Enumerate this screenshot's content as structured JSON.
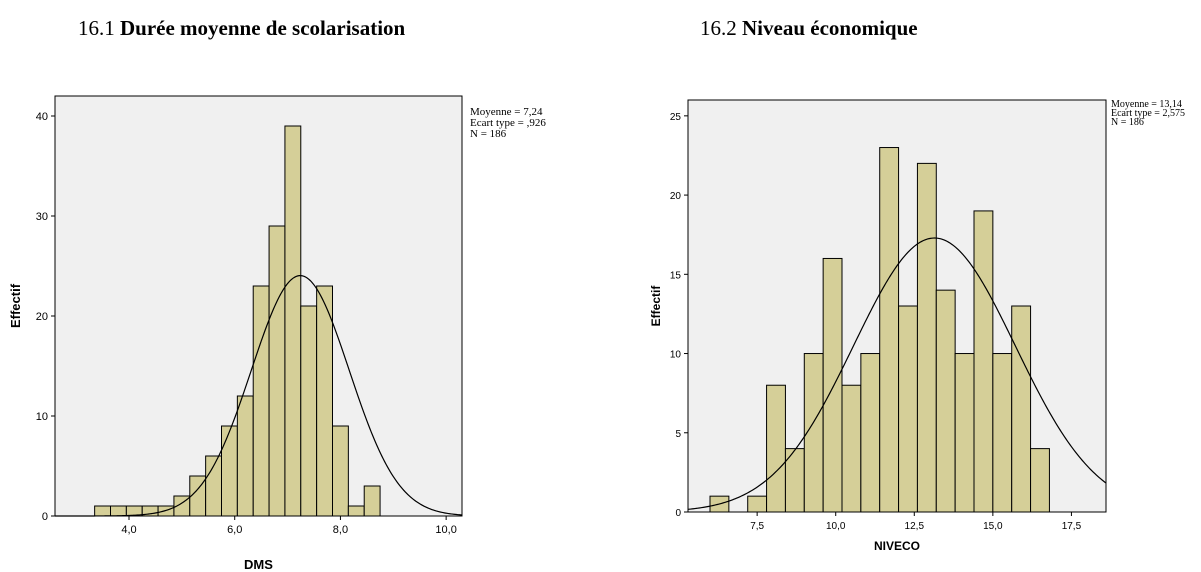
{
  "headings": [
    {
      "number": "16.1",
      "title": "Durée moyenne de scolarisation"
    },
    {
      "number": "16.2",
      "title": "Niveau économique"
    }
  ],
  "colors": {
    "bar_fill": "#d5cf98",
    "bar_stroke": "#000000",
    "plot_bg": "#f0f0f0",
    "curve": "#000000"
  },
  "chart_data": [
    {
      "type": "bar",
      "subtype": "histogram",
      "title": "",
      "xlabel": "DMS",
      "ylabel": "Effectif",
      "xlim": [
        2.6,
        10.3
      ],
      "ylim": [
        0,
        42
      ],
      "xticks": [
        4.0,
        6.0,
        8.0,
        10.0
      ],
      "xtick_labels": [
        "4,0",
        "6,0",
        "8,0",
        "10,0"
      ],
      "yticks": [
        0,
        10,
        20,
        30,
        40
      ],
      "ytick_labels": [
        "0",
        "10",
        "20",
        "30",
        "40"
      ],
      "bin_width": 0.3,
      "bins_start": [
        3.35,
        3.65,
        3.95,
        4.25,
        4.55,
        4.85,
        5.15,
        5.45,
        5.75,
        6.05,
        6.35,
        6.65,
        6.95,
        7.25,
        7.55,
        7.85,
        8.15,
        8.45,
        8.75,
        9.05
      ],
      "values": [
        1,
        1,
        1,
        1,
        1,
        2,
        4,
        6,
        9,
        12,
        23,
        29,
        39,
        21,
        23,
        9,
        1,
        3,
        0,
        0
      ],
      "normal_curve": {
        "mean": 7.24,
        "sd": 0.926,
        "n": 186
      },
      "stats_text": [
        "Moyenne = 7,24",
        "Ecart type = ,926",
        "N = 186"
      ],
      "grid": false
    },
    {
      "type": "bar",
      "subtype": "histogram",
      "title": "",
      "xlabel": "NIVECO",
      "ylabel": "Effectif",
      "xlim": [
        5.3,
        18.6
      ],
      "ylim": [
        0,
        26
      ],
      "xticks": [
        7.5,
        10.0,
        12.5,
        15.0,
        17.5
      ],
      "xtick_labels": [
        "7,5",
        "10,0",
        "12,5",
        "15,0",
        "17,5"
      ],
      "yticks": [
        0,
        5,
        10,
        15,
        20,
        25
      ],
      "ytick_labels": [
        "0",
        "5",
        "10",
        "15",
        "20",
        "25"
      ],
      "bin_width": 0.6,
      "bins_start": [
        6.0,
        6.6,
        7.2,
        7.8,
        8.4,
        9.0,
        9.6,
        10.2,
        10.8,
        11.4,
        12.0,
        12.6,
        13.2,
        13.8,
        14.4,
        15.0,
        15.6,
        16.2,
        16.8,
        17.4
      ],
      "values": [
        1,
        0,
        1,
        8,
        4,
        10,
        16,
        8,
        10,
        23,
        13,
        22,
        14,
        10,
        19,
        10,
        13,
        4,
        0,
        0
      ],
      "normal_curve": {
        "mean": 13.14,
        "sd": 2.575,
        "n": 186
      },
      "stats_text": [
        "Moyenne = 13,14",
        "Ecart type = 2,575",
        "N = 186"
      ],
      "grid": false
    }
  ]
}
